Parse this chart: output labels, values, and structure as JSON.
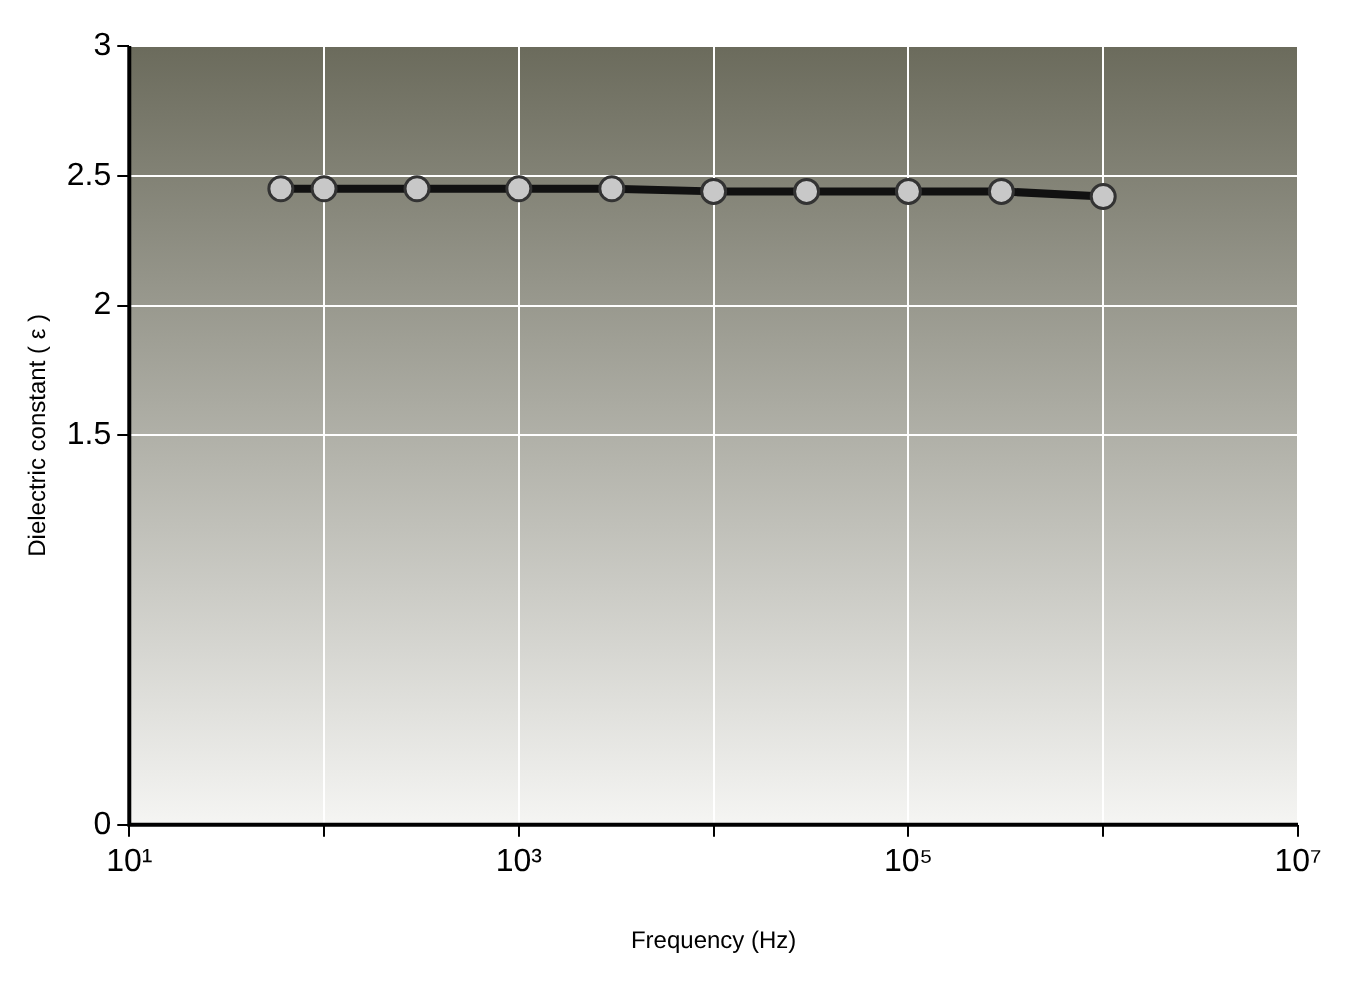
{
  "chart_data": {
    "type": "line",
    "xlabel": "Frequency (Hz)",
    "ylabel": "Dielectric constant ( ε )",
    "x": [
      60,
      100,
      300,
      1000,
      3000,
      10000,
      30000,
      100000,
      300000,
      1000000
    ],
    "series": [
      {
        "color": "#111111",
        "values": [
          2.45,
          2.45,
          2.45,
          2.45,
          2.45,
          2.44,
          2.44,
          2.44,
          2.44,
          2.42
        ]
      }
    ],
    "log": "x",
    "xlim": [
      10,
      10000000
    ],
    "xticks": [
      {
        "value": 10,
        "label": "10¹"
      },
      {
        "value": 1000,
        "label": "10³"
      },
      {
        "value": 100000,
        "label": "10⁵"
      },
      {
        "value": 10000000,
        "label": "10⁷"
      },
      {
        "value": 100,
        "label": null
      },
      {
        "value": 10000,
        "label": null
      },
      {
        "value": 1000000,
        "label": null
      }
    ],
    "ylim": [
      0,
      3
    ],
    "yticks": [
      0,
      1.5,
      2,
      2.5,
      3
    ],
    "grid": true,
    "legend": false,
    "marker": "circle",
    "line_style": "solid"
  }
}
